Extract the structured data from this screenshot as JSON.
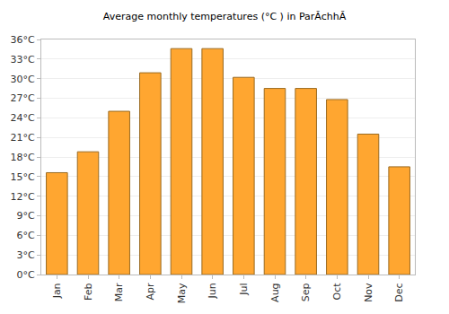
{
  "chart_data": {
    "type": "bar",
    "title": "Average monthly temperatures (°C ) in ParĂchhĂ",
    "categories": [
      "Jan",
      "Feb",
      "Mar",
      "Apr",
      "May",
      "Jun",
      "Jul",
      "Aug",
      "Sep",
      "Oct",
      "Nov",
      "Dec"
    ],
    "values": [
      15.6,
      18.8,
      25.0,
      30.9,
      34.6,
      34.6,
      30.2,
      28.5,
      28.5,
      26.8,
      21.5,
      16.5
    ],
    "color": "#ffa630",
    "ylim": [
      0,
      36
    ],
    "yticks": [
      {
        "value": 0,
        "label": "0°C"
      },
      {
        "value": 3,
        "label": "3°C"
      },
      {
        "value": 6,
        "label": "6°C"
      },
      {
        "value": 9,
        "label": "9°C"
      },
      {
        "value": 12,
        "label": "12°C"
      },
      {
        "value": 15,
        "label": "15°C"
      },
      {
        "value": 18,
        "label": "18°C"
      },
      {
        "value": 21,
        "label": "21°C"
      },
      {
        "value": 24,
        "label": "24°C"
      },
      {
        "value": 27,
        "label": "27°C"
      },
      {
        "value": 30,
        "label": "30°C"
      },
      {
        "value": 33,
        "label": "33°C"
      },
      {
        "value": 36,
        "label": "36°C"
      }
    ],
    "grid": true
  }
}
